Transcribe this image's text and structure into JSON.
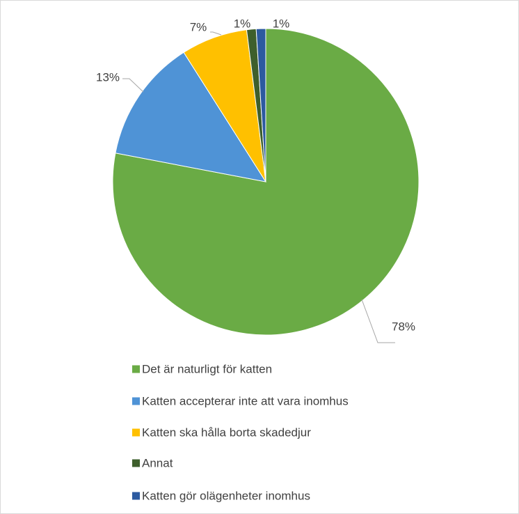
{
  "chart_data": {
    "type": "pie",
    "categories": [
      "Det är naturligt för katten",
      "Katten accepterar inte att vara inomhus",
      "Katten ska hålla borta skadedjur",
      "Annat",
      "Katten gör olägenheter inomhus"
    ],
    "values": [
      78,
      13,
      7,
      1,
      1
    ],
    "value_labels": [
      "78%",
      "13%",
      "7%",
      "1%",
      "1%"
    ],
    "colors": [
      "#6aab45",
      "#4f93d6",
      "#ffc000",
      "#3e5f2c",
      "#2c5aa0"
    ]
  }
}
